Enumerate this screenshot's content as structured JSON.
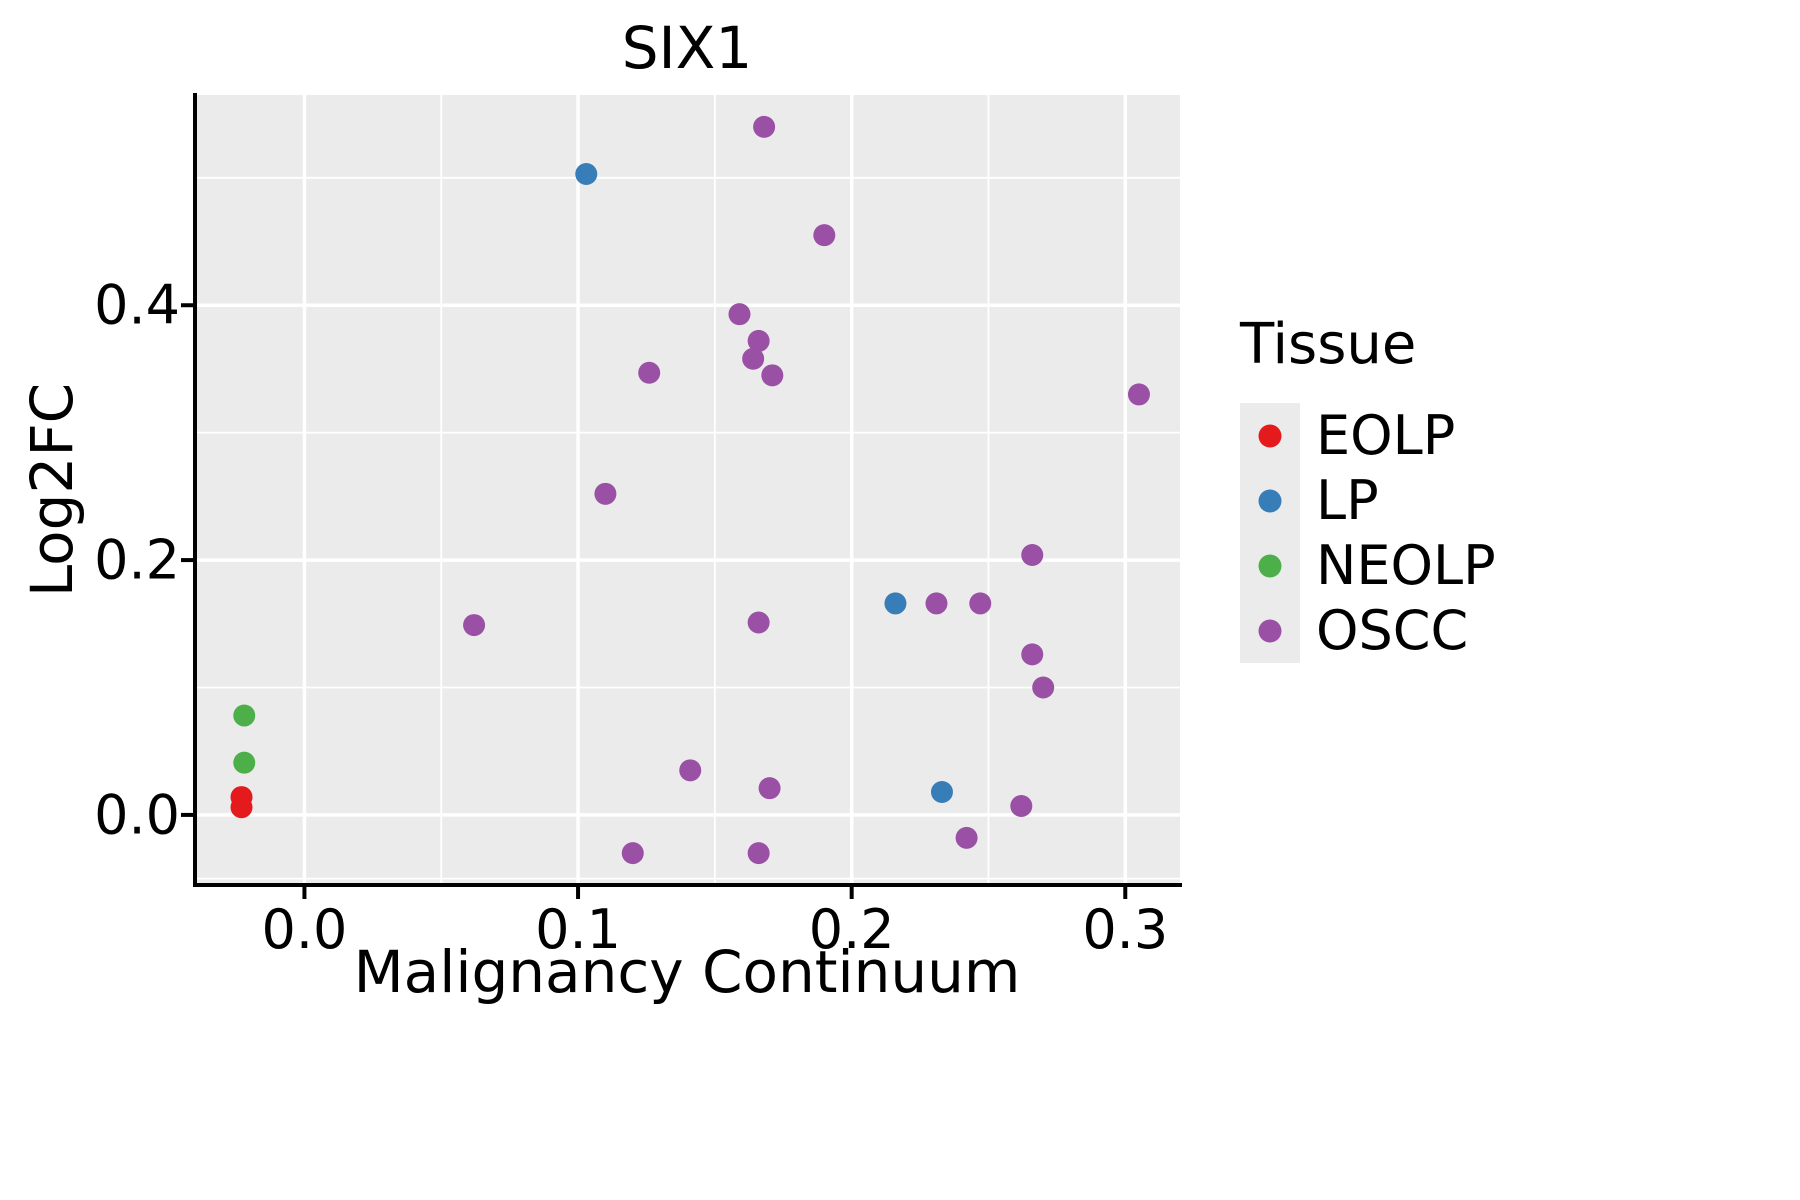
{
  "title": "SIX1",
  "axes": {
    "xlabel": "Malignancy Continuum",
    "ylabel": "Log2FC"
  },
  "legend": {
    "title": "Tissue",
    "entries": [
      "EOLP",
      "LP",
      "NEOLP",
      "OSCC"
    ]
  },
  "colors": {
    "panel": "#ebebeb",
    "grid_major": "#ffffff",
    "grid_minor": "#ffffff",
    "axis_line": "#000000",
    "text": "#000000"
  },
  "chart_data": {
    "type": "scatter",
    "title": "SIX1",
    "xlabel": "Malignancy Continuum",
    "ylabel": "Log2FC",
    "xlim": [
      -0.04,
      0.32
    ],
    "ylim": [
      -0.055,
      0.565
    ],
    "xticks": [
      0.0,
      0.1,
      0.2,
      0.3
    ],
    "xtick_labels": [
      "0.0",
      "0.1",
      "0.2",
      "0.3"
    ],
    "yticks": [
      0.0,
      0.2,
      0.4
    ],
    "ytick_labels": [
      "0.0",
      "0.2",
      "0.4"
    ],
    "xticks_minor": [
      0.05,
      0.15,
      0.25
    ],
    "yticks_minor": [
      -0.05,
      0.1,
      0.3,
      0.5
    ],
    "grid": true,
    "legend_position": "right",
    "point_radius": 11,
    "series": [
      {
        "name": "EOLP",
        "color": "#e41a1c",
        "points": [
          [
            -0.023,
            0.014
          ],
          [
            -0.023,
            0.006
          ]
        ]
      },
      {
        "name": "LP",
        "color": "#377eb8",
        "points": [
          [
            0.103,
            0.503
          ],
          [
            0.216,
            0.166
          ],
          [
            0.233,
            0.018
          ]
        ]
      },
      {
        "name": "NEOLP",
        "color": "#4daf4a",
        "points": [
          [
            -0.022,
            0.078
          ],
          [
            -0.022,
            0.041
          ]
        ]
      },
      {
        "name": "OSCC",
        "color": "#9a51a5",
        "points": [
          [
            0.168,
            0.54
          ],
          [
            0.19,
            0.455
          ],
          [
            0.159,
            0.393
          ],
          [
            0.166,
            0.372
          ],
          [
            0.164,
            0.358
          ],
          [
            0.171,
            0.345
          ],
          [
            0.126,
            0.347
          ],
          [
            0.305,
            0.33
          ],
          [
            0.11,
            0.252
          ],
          [
            0.266,
            0.204
          ],
          [
            0.231,
            0.166
          ],
          [
            0.247,
            0.166
          ],
          [
            0.062,
            0.149
          ],
          [
            0.166,
            0.151
          ],
          [
            0.266,
            0.126
          ],
          [
            0.27,
            0.1
          ],
          [
            0.141,
            0.035
          ],
          [
            0.17,
            0.021
          ],
          [
            0.262,
            0.007
          ],
          [
            0.242,
            -0.018
          ],
          [
            0.12,
            -0.03
          ],
          [
            0.166,
            -0.03
          ]
        ]
      }
    ]
  }
}
